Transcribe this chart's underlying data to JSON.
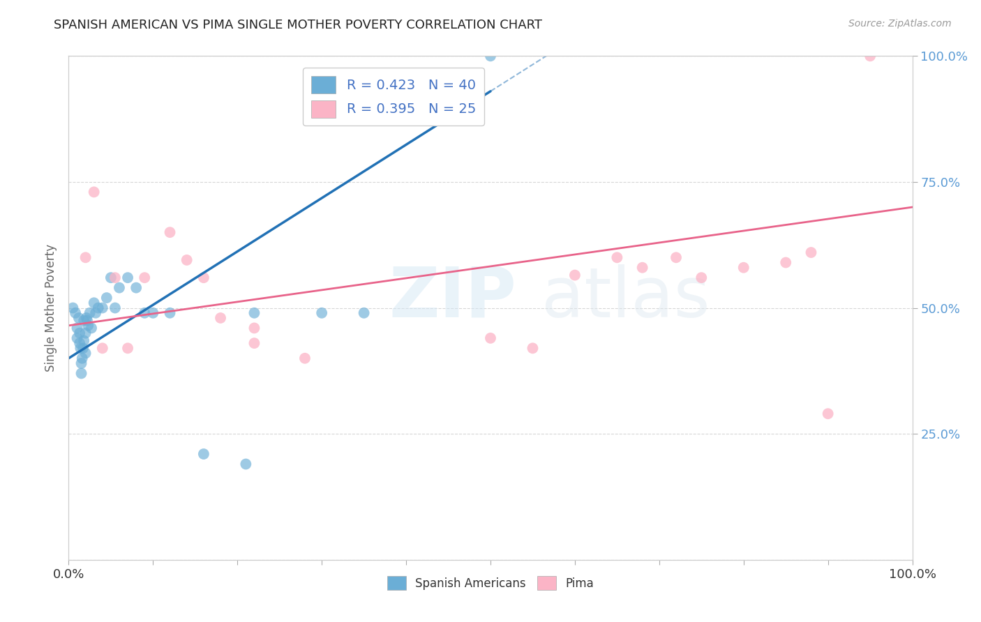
{
  "title": "SPANISH AMERICAN VS PIMA SINGLE MOTHER POVERTY CORRELATION CHART",
  "source": "Source: ZipAtlas.com",
  "ylabel": "Single Mother Poverty",
  "xlim": [
    0.0,
    1.0
  ],
  "ylim": [
    0.0,
    1.0
  ],
  "xticks": [
    0.0,
    0.1,
    0.2,
    0.3,
    0.4,
    0.5,
    0.6,
    0.7,
    0.8,
    0.9,
    1.0
  ],
  "xtick_labels_show": [
    "0.0%",
    "",
    "",
    "",
    "",
    "",
    "",
    "",
    "",
    "",
    "100.0%"
  ],
  "ytick_positions_right": [
    1.0,
    0.75,
    0.5,
    0.25
  ],
  "ytick_labels_right": [
    "100.0%",
    "75.0%",
    "50.0%",
    "25.0%"
  ],
  "R_blue": 0.423,
  "N_blue": 40,
  "R_pink": 0.395,
  "N_pink": 25,
  "blue_color": "#6baed6",
  "pink_color": "#fbb4c6",
  "blue_line_color": "#2171b5",
  "pink_line_color": "#e8638a",
  "legend_blue_label": "R = 0.423   N = 40",
  "legend_pink_label": "R = 0.395   N = 25",
  "bottom_legend_blue": "Spanish Americans",
  "bottom_legend_pink": "Pima",
  "blue_points_x": [
    0.005,
    0.008,
    0.01,
    0.01,
    0.012,
    0.013,
    0.013,
    0.014,
    0.015,
    0.015,
    0.016,
    0.017,
    0.018,
    0.018,
    0.02,
    0.02,
    0.021,
    0.022,
    0.023,
    0.025,
    0.027,
    0.03,
    0.032,
    0.035,
    0.04,
    0.045,
    0.05,
    0.055,
    0.06,
    0.07,
    0.08,
    0.09,
    0.1,
    0.12,
    0.16,
    0.21,
    0.22,
    0.3,
    0.35,
    0.5
  ],
  "blue_points_y": [
    0.5,
    0.49,
    0.46,
    0.44,
    0.48,
    0.45,
    0.43,
    0.42,
    0.39,
    0.37,
    0.4,
    0.42,
    0.435,
    0.475,
    0.41,
    0.45,
    0.48,
    0.475,
    0.465,
    0.49,
    0.46,
    0.51,
    0.49,
    0.5,
    0.5,
    0.52,
    0.56,
    0.5,
    0.54,
    0.56,
    0.54,
    0.49,
    0.49,
    0.49,
    0.21,
    0.19,
    0.49,
    0.49,
    0.49,
    1.0
  ],
  "pink_points_x": [
    0.02,
    0.03,
    0.04,
    0.055,
    0.07,
    0.09,
    0.12,
    0.14,
    0.16,
    0.18,
    0.22,
    0.22,
    0.28,
    0.5,
    0.55,
    0.6,
    0.65,
    0.68,
    0.72,
    0.75,
    0.8,
    0.85,
    0.88,
    0.9,
    0.95
  ],
  "pink_points_y": [
    0.6,
    0.73,
    0.42,
    0.56,
    0.42,
    0.56,
    0.65,
    0.595,
    0.56,
    0.48,
    0.43,
    0.46,
    0.4,
    0.44,
    0.42,
    0.565,
    0.6,
    0.58,
    0.6,
    0.56,
    0.58,
    0.59,
    0.61,
    0.29,
    1.0
  ],
  "blue_line_x": [
    0.0,
    0.5
  ],
  "blue_line_y": [
    0.4,
    0.93
  ],
  "pink_line_x": [
    0.0,
    1.0
  ],
  "pink_line_y": [
    0.465,
    0.7
  ]
}
